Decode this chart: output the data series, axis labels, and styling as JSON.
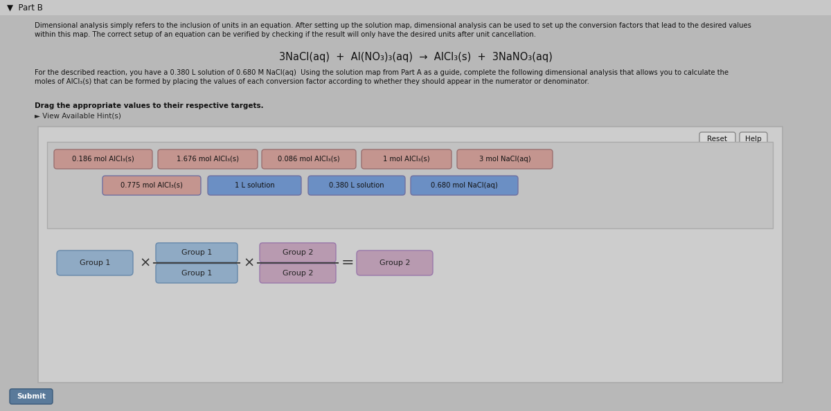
{
  "paragraph1": "Dimensional analysis simply refers to the inclusion of units in an equation. After setting up the solution map, dimensional analysis can be used to set up the conversion factors that lead to the desired values\nwithin this map. The correct setup of an equation can be verified by checking if the result will only have the desired units after unit cancellation.",
  "equation": "3NaCl(aq)  +  Al(NO₃)₃(aq)  →  AlCl₃(s)  +  3NaNO₃(aq)",
  "paragraph2": "For the described reaction, you have a 0.380 L solution of 0.680 M NaCl(aq)  Using the solution map from Part A as a guide, complete the following dimensional analysis that allows you to calculate the\nmoles of AlCl₃(s) that can be formed by placing the values of each conversion factor according to whether they should appear in the numerator or denominator.",
  "drag_text": "Drag the appropriate values to their respective targets.",
  "hint_text": "► View Available Hint(s)",
  "submit_text": "Submit",
  "reset_text": "Reset",
  "help_text": "Help",
  "row1_labels": [
    "0.186 mol AlCl₃(s)",
    "1.676 mol AlCl₃(s)",
    "0.086 mol AlCl₃(s)",
    "1 mol AlCl₃(s)",
    "3 mol NaCl(aq)"
  ],
  "row2_labels": [
    "0.775 mol AlCl₃(s)",
    "1 L solution",
    "0.380 L solution",
    "0.680 mol NaCl(aq)"
  ],
  "row1_color": "#c4958f",
  "row2_col1_color": "#c4958f",
  "row2_col234_color": "#6b8fc4",
  "bg_page": "#b8b8b8",
  "bg_panel": "#cdcdcd",
  "bg_dragbox": "#c2c2c2",
  "group1_color": "#8faac4",
  "group2_color": "#b89ab0",
  "btn_color": "#d8d8d8"
}
